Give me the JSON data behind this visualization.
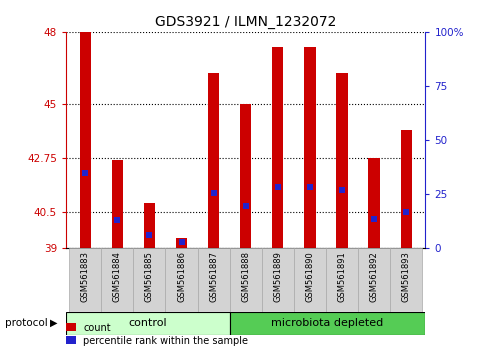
{
  "title": "GDS3921 / ILMN_1232072",
  "samples": [
    "GSM561883",
    "GSM561884",
    "GSM561885",
    "GSM561886",
    "GSM561887",
    "GSM561888",
    "GSM561889",
    "GSM561890",
    "GSM561891",
    "GSM561892",
    "GSM561893"
  ],
  "counts": [
    48.0,
    42.65,
    40.85,
    39.4,
    46.3,
    45.0,
    47.35,
    47.35,
    46.3,
    42.75,
    43.9
  ],
  "percentiles_left": [
    42.1,
    40.15,
    39.55,
    39.25,
    41.3,
    40.75,
    41.55,
    41.55,
    41.4,
    40.2,
    40.5
  ],
  "ymin": 39,
  "ymax": 48,
  "yticks_left": [
    39,
    40.5,
    42.75,
    45,
    48
  ],
  "yticks_right": [
    0,
    25,
    50,
    75,
    100
  ],
  "bar_color": "#cc0000",
  "marker_color": "#2222cc",
  "control_count": 5,
  "microbiota_count": 6,
  "control_label": "control",
  "microbiota_label": "microbiota depleted",
  "protocol_label": "protocol",
  "control_color": "#ccffcc",
  "microbiota_color": "#55cc55",
  "legend_count": "count",
  "legend_pct": "percentile rank within the sample",
  "bar_width": 0.35
}
